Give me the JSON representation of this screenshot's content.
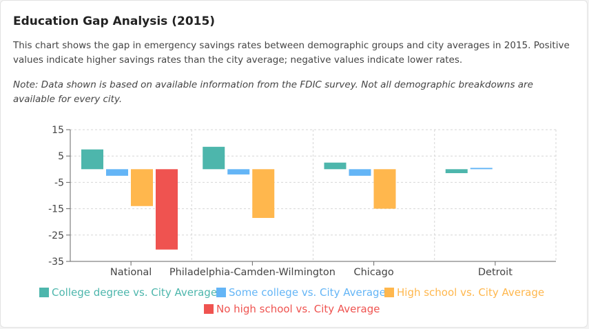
{
  "header": {
    "title": "Education Gap Analysis (2015)",
    "description": "This chart shows the gap in emergency savings rates between demographic groups and city averages in 2015. Positive values indicate higher savings rates than the city average; negative values indicate lower rates.",
    "note": "Note: Data shown is based on available information from the FDIC survey. Not all demographic breakdowns are available for every city."
  },
  "chart_data": {
    "type": "bar",
    "categories": [
      "National",
      "Philadelphia-Camden-Wilmington",
      "Chicago",
      "Detroit"
    ],
    "series": [
      {
        "name": "College degree vs. City Average",
        "color": "#4db6ac",
        "values": [
          7.5,
          8.5,
          2.5,
          -1.5
        ]
      },
      {
        "name": "Some college vs. City Average",
        "color": "#64b5f6",
        "values": [
          -2.5,
          -2.0,
          -2.5,
          0.5
        ]
      },
      {
        "name": "High school vs. City Average",
        "color": "#ffb74d",
        "values": [
          -14.0,
          -18.5,
          -15.0,
          null
        ]
      },
      {
        "name": "No high school vs. City Average",
        "color": "#ef5350",
        "values": [
          -30.5,
          null,
          null,
          null
        ]
      }
    ],
    "yticks": [
      15,
      5,
      -5,
      -15,
      -25,
      -35
    ],
    "ylim": [
      -35,
      15
    ],
    "grid": true,
    "legend": "bottom"
  }
}
